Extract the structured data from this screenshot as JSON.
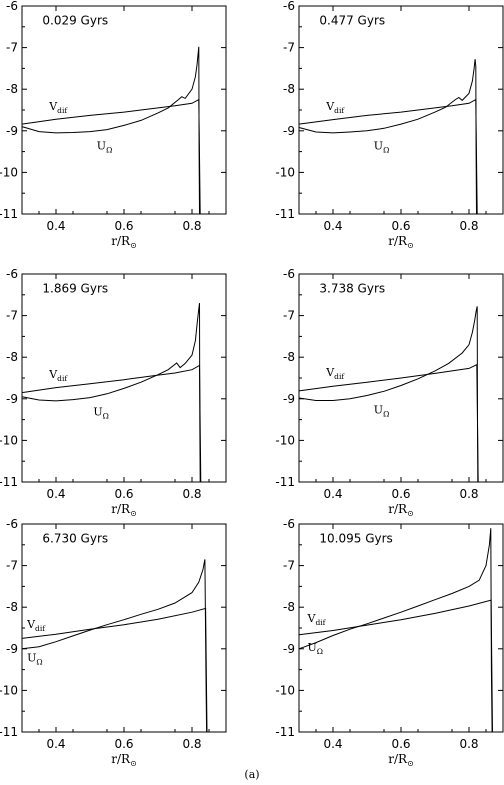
{
  "figure_caption": "(a)",
  "chart_data": [
    {
      "type": "line",
      "title": "0.029 Gyrs",
      "xlabel_main": "r/R",
      "xlabel_sub": "⊙",
      "xlim": [
        0.3,
        0.9
      ],
      "ylim": [
        -11,
        -6
      ],
      "xticks": [
        0.4,
        0.6,
        0.8
      ],
      "yticks": [
        -11,
        -10,
        -9,
        -8,
        -7,
        -6
      ],
      "grid": false,
      "series": [
        {
          "main": "V",
          "sub": "dif",
          "x": [
            0.3,
            0.4,
            0.5,
            0.6,
            0.7,
            0.75,
            0.8,
            0.82,
            0.824
          ],
          "y": [
            -8.84,
            -8.72,
            -8.63,
            -8.55,
            -8.45,
            -8.4,
            -8.34,
            -8.25,
            -11
          ]
        },
        {
          "main": "U",
          "sub": "Ω",
          "x": [
            0.3,
            0.35,
            0.4,
            0.45,
            0.5,
            0.55,
            0.6,
            0.65,
            0.7,
            0.73,
            0.76,
            0.77,
            0.78,
            0.8,
            0.81,
            0.815,
            0.818,
            0.82,
            0.821,
            0.822
          ],
          "y": [
            -8.9,
            -9.02,
            -9.05,
            -9.04,
            -9.02,
            -8.97,
            -8.87,
            -8.75,
            -8.57,
            -8.45,
            -8.25,
            -8.18,
            -8.22,
            -8.0,
            -7.7,
            -7.4,
            -7.15,
            -6.98,
            -9.5,
            -11
          ]
        }
      ],
      "labels": [
        {
          "series": 0,
          "x": 0.38,
          "y": -8.5
        },
        {
          "series": 1,
          "x": 0.52,
          "y": -9.45
        }
      ]
    },
    {
      "type": "line",
      "title": "0.477 Gyrs",
      "xlabel_main": "r/R",
      "xlabel_sub": "⊙",
      "xlim": [
        0.3,
        0.9
      ],
      "ylim": [
        -11,
        -6
      ],
      "xticks": [
        0.4,
        0.6,
        0.8
      ],
      "yticks": [
        -11,
        -10,
        -9,
        -8,
        -7,
        -6
      ],
      "grid": false,
      "series": [
        {
          "main": "V",
          "sub": "dif",
          "x": [
            0.3,
            0.4,
            0.5,
            0.6,
            0.7,
            0.75,
            0.8,
            0.82,
            0.824
          ],
          "y": [
            -8.84,
            -8.73,
            -8.63,
            -8.55,
            -8.45,
            -8.4,
            -8.34,
            -8.25,
            -11
          ]
        },
        {
          "main": "U",
          "sub": "Ω",
          "x": [
            0.3,
            0.35,
            0.4,
            0.45,
            0.5,
            0.55,
            0.6,
            0.65,
            0.7,
            0.73,
            0.76,
            0.77,
            0.78,
            0.8,
            0.81,
            0.815,
            0.818,
            0.82,
            0.821,
            0.822
          ],
          "y": [
            -8.92,
            -9.03,
            -9.05,
            -9.03,
            -9.0,
            -8.94,
            -8.84,
            -8.72,
            -8.55,
            -8.44,
            -8.25,
            -8.2,
            -8.27,
            -8.1,
            -7.8,
            -7.5,
            -7.28,
            -7.45,
            -9.5,
            -11
          ]
        }
      ],
      "labels": [
        {
          "series": 0,
          "x": 0.38,
          "y": -8.5
        },
        {
          "series": 1,
          "x": 0.52,
          "y": -9.45
        }
      ]
    },
    {
      "type": "line",
      "title": "1.869 Gyrs",
      "xlabel_main": "r/R",
      "xlabel_sub": "⊙",
      "xlim": [
        0.3,
        0.9
      ],
      "ylim": [
        -11,
        -6
      ],
      "xticks": [
        0.4,
        0.6,
        0.8
      ],
      "yticks": [
        -11,
        -10,
        -9,
        -8,
        -7,
        -6
      ],
      "grid": false,
      "series": [
        {
          "main": "V",
          "sub": "dif",
          "x": [
            0.3,
            0.4,
            0.5,
            0.6,
            0.7,
            0.75,
            0.8,
            0.822,
            0.826
          ],
          "y": [
            -8.85,
            -8.73,
            -8.64,
            -8.54,
            -8.43,
            -8.38,
            -8.3,
            -8.2,
            -11
          ]
        },
        {
          "main": "U",
          "sub": "Ω",
          "x": [
            0.3,
            0.35,
            0.4,
            0.45,
            0.5,
            0.55,
            0.6,
            0.65,
            0.7,
            0.73,
            0.755,
            0.765,
            0.78,
            0.8,
            0.81,
            0.815,
            0.819,
            0.822,
            0.823,
            0.824
          ],
          "y": [
            -8.95,
            -9.03,
            -9.05,
            -9.02,
            -8.97,
            -8.88,
            -8.75,
            -8.6,
            -8.42,
            -8.3,
            -8.14,
            -8.25,
            -8.15,
            -7.95,
            -7.6,
            -7.2,
            -6.9,
            -6.7,
            -9.5,
            -11
          ]
        }
      ],
      "labels": [
        {
          "series": 0,
          "x": 0.38,
          "y": -8.5
        },
        {
          "series": 1,
          "x": 0.51,
          "y": -9.4
        }
      ]
    },
    {
      "type": "line",
      "title": "3.738 Gyrs",
      "xlabel_main": "r/R",
      "xlabel_sub": "⊙",
      "xlim": [
        0.3,
        0.9
      ],
      "ylim": [
        -11,
        -6
      ],
      "xticks": [
        0.4,
        0.6,
        0.8
      ],
      "yticks": [
        -11,
        -10,
        -9,
        -8,
        -7,
        -6
      ],
      "grid": false,
      "series": [
        {
          "main": "V",
          "sub": "dif",
          "x": [
            0.3,
            0.4,
            0.5,
            0.6,
            0.7,
            0.75,
            0.8,
            0.823,
            0.827
          ],
          "y": [
            -8.81,
            -8.7,
            -8.6,
            -8.5,
            -8.39,
            -8.33,
            -8.27,
            -8.18,
            -11
          ]
        },
        {
          "main": "U",
          "sub": "Ω",
          "x": [
            0.3,
            0.35,
            0.4,
            0.45,
            0.5,
            0.55,
            0.6,
            0.65,
            0.7,
            0.74,
            0.78,
            0.8,
            0.81,
            0.817,
            0.821,
            0.824,
            0.825,
            0.826
          ],
          "y": [
            -8.98,
            -9.04,
            -9.04,
            -9.0,
            -8.92,
            -8.82,
            -8.68,
            -8.52,
            -8.33,
            -8.15,
            -7.9,
            -7.7,
            -7.4,
            -7.1,
            -6.9,
            -6.78,
            -9.5,
            -11
          ]
        }
      ],
      "labels": [
        {
          "series": 0,
          "x": 0.38,
          "y": -8.45
        },
        {
          "series": 1,
          "x": 0.52,
          "y": -9.35
        }
      ]
    },
    {
      "type": "line",
      "title": "6.730 Gyrs",
      "xlabel_main": "r/R",
      "xlabel_sub": "⊙",
      "xlim": [
        0.3,
        0.9
      ],
      "ylim": [
        -11,
        -6
      ],
      "xticks": [
        0.4,
        0.6,
        0.8
      ],
      "yticks": [
        -11,
        -10,
        -9,
        -8,
        -7,
        -6
      ],
      "grid": false,
      "series": [
        {
          "main": "V",
          "sub": "dif",
          "x": [
            0.3,
            0.4,
            0.5,
            0.6,
            0.7,
            0.8,
            0.84,
            0.844
          ],
          "y": [
            -8.75,
            -8.65,
            -8.53,
            -8.42,
            -8.29,
            -8.12,
            -8.03,
            -11
          ]
        },
        {
          "main": "U",
          "sub": "Ω",
          "x": [
            0.3,
            0.35,
            0.4,
            0.45,
            0.5,
            0.55,
            0.6,
            0.65,
            0.7,
            0.75,
            0.8,
            0.82,
            0.832,
            0.838,
            0.841,
            0.843
          ],
          "y": [
            -9.0,
            -8.95,
            -8.83,
            -8.69,
            -8.55,
            -8.42,
            -8.3,
            -8.17,
            -8.05,
            -7.9,
            -7.65,
            -7.4,
            -7.1,
            -6.85,
            -9.5,
            -11
          ]
        }
      ],
      "labels": [
        {
          "series": 0,
          "x": 0.315,
          "y": -8.5
        },
        {
          "series": 1,
          "x": 0.315,
          "y": -9.3
        }
      ]
    },
    {
      "type": "line",
      "title": "10.095 Gyrs",
      "xlabel_main": "r/R",
      "xlabel_sub": "⊙",
      "xlim": [
        0.3,
        0.9
      ],
      "ylim": [
        -11,
        -6
      ],
      "xticks": [
        0.4,
        0.6,
        0.8
      ],
      "yticks": [
        -11,
        -10,
        -9,
        -8,
        -7,
        -6
      ],
      "grid": false,
      "series": [
        {
          "main": "V",
          "sub": "dif",
          "x": [
            0.3,
            0.4,
            0.5,
            0.6,
            0.7,
            0.8,
            0.865,
            0.869
          ],
          "y": [
            -8.66,
            -8.56,
            -8.43,
            -8.3,
            -8.15,
            -7.97,
            -7.83,
            -11
          ]
        },
        {
          "main": "U",
          "sub": "Ω",
          "x": [
            0.3,
            0.35,
            0.4,
            0.45,
            0.5,
            0.55,
            0.6,
            0.65,
            0.7,
            0.75,
            0.8,
            0.83,
            0.85,
            0.86,
            0.864,
            0.866,
            0.868
          ],
          "y": [
            -9.0,
            -8.85,
            -8.68,
            -8.53,
            -8.4,
            -8.26,
            -8.12,
            -7.97,
            -7.82,
            -7.67,
            -7.5,
            -7.35,
            -7.0,
            -6.5,
            -6.1,
            -9.5,
            -11
          ]
        }
      ],
      "labels": [
        {
          "series": 0,
          "x": 0.325,
          "y": -8.35
        },
        {
          "series": 1,
          "x": 0.325,
          "y": -9.05
        }
      ]
    }
  ]
}
